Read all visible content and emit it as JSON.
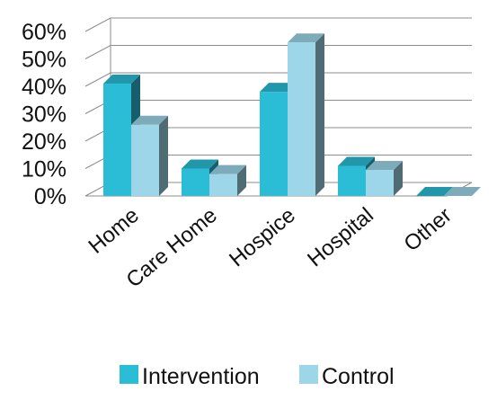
{
  "chart_data": {
    "type": "bar",
    "categories": [
      "Home",
      "Care Home",
      "Hospice",
      "Hospital",
      "Other"
    ],
    "series": [
      {
        "name": "Intervention",
        "values": [
          41,
          10,
          38,
          11,
          0
        ]
      },
      {
        "name": "Control",
        "values": [
          26,
          8,
          56,
          9.5,
          0
        ]
      }
    ],
    "y_tick_labels": [
      "0%",
      "10%",
      "20%",
      "30%",
      "40%",
      "50%",
      "60%"
    ],
    "ylim": [
      0,
      60
    ],
    "grid": true,
    "legend_position": "bottom",
    "colors": {
      "Intervention": "#2bbcd6",
      "Control": "#9dd6e8",
      "gridline": "#8c8c8c"
    }
  }
}
